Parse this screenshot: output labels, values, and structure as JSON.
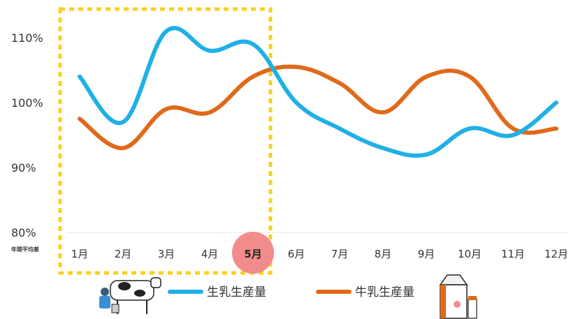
{
  "chart_data": {
    "type": "line",
    "categories": [
      "1月",
      "2月",
      "3月",
      "4月",
      "5月",
      "6月",
      "7月",
      "8月",
      "9月",
      "10月",
      "11月",
      "12月"
    ],
    "y_ticks": [
      "80%",
      "90%",
      "100%",
      "110%"
    ],
    "ylim": [
      80,
      113
    ],
    "y_unit_note": "年間平均差",
    "highlight": {
      "range": [
        "1月",
        "5月"
      ],
      "category": "5月"
    },
    "series": [
      {
        "name": "生乳生産量",
        "color": "#1fb0e6",
        "values": [
          104,
          97,
          111,
          108,
          109,
          100,
          96,
          93,
          92,
          96,
          95,
          100
        ]
      },
      {
        "name": "牛乳生産量",
        "color": "#e06a1b",
        "values": [
          97.5,
          93,
          99,
          98.5,
          104,
          105.5,
          103,
          98.5,
          104,
          104,
          96,
          96
        ]
      }
    ],
    "grid": false,
    "legend": "bottom"
  },
  "colors": {
    "highlight_frame": "#f7d21b",
    "highlight_marker": "#f28b8b",
    "axis_line": "#e6e6e6"
  },
  "icons": [
    "cow-milking-icon",
    "milk-carton-icon"
  ]
}
